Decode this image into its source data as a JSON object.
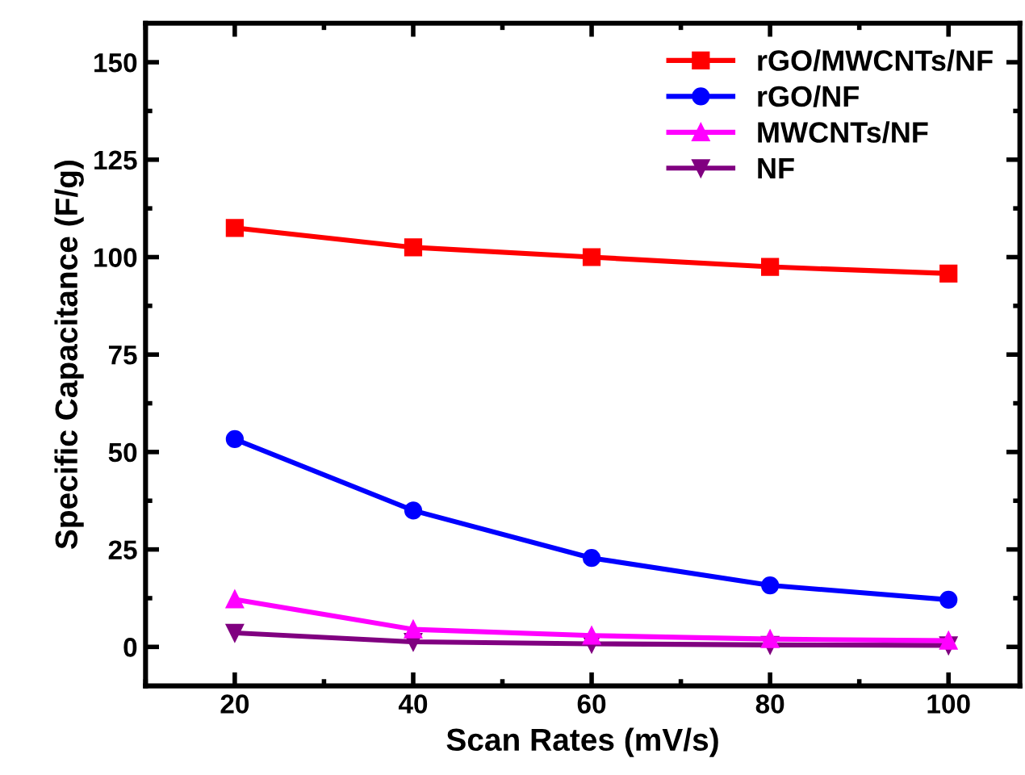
{
  "chart_data": {
    "type": "line",
    "xlabel": "Scan Rates (mV/s)",
    "ylabel": "Specific Capacitance (F/g)",
    "x": [
      20,
      40,
      60,
      80,
      100
    ],
    "series": [
      {
        "name": "rGO/MWCNTs/NF",
        "color": "#ff0000",
        "marker": "square",
        "values": [
          107.5,
          102.5,
          100,
          97.5,
          95.8
        ]
      },
      {
        "name": "rGO/NF",
        "color": "#0000ff",
        "marker": "circle",
        "values": [
          53.3,
          35,
          22.8,
          15.8,
          12.1
        ]
      },
      {
        "name": "MWCNTs/NF",
        "color": "#ff00ff",
        "marker": "triangle",
        "values": [
          12.2,
          4.5,
          2.9,
          2.0,
          1.6
        ]
      },
      {
        "name": "NF",
        "color": "#800080",
        "marker": "triangle_down",
        "values": [
          3.6,
          1.3,
          0.8,
          0.5,
          0.4
        ]
      }
    ],
    "xlim": [
      10,
      108
    ],
    "xticks": [
      20,
      40,
      60,
      80,
      100
    ],
    "ylim": [
      -10,
      160
    ],
    "yticks": [
      0,
      25,
      50,
      75,
      100,
      125,
      150
    ],
    "grid": false,
    "legend": "top right",
    "line_style": "solid"
  }
}
